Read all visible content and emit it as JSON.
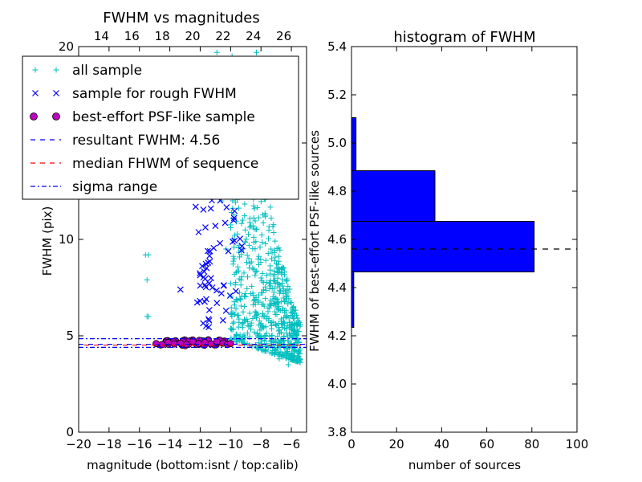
{
  "chart_data": [
    {
      "type": "scatter",
      "title": "FWHM vs magnitudes",
      "xlabel": "magnitude (bottom:isnt / top:calib)",
      "ylabel": "FWHM (pix)",
      "xlim": [
        -20,
        -5
      ],
      "ylim": [
        0,
        20
      ],
      "xticks": [
        "−20",
        "−18",
        "−16",
        "−14",
        "−12",
        "−10",
        "−8",
        "−6"
      ],
      "yticks": [
        "0",
        "5",
        "10",
        "15",
        "20"
      ],
      "top_xlim": [
        12.5,
        27.5
      ],
      "top_xticks": [
        "14",
        "16",
        "18",
        "20",
        "22",
        "24",
        "26"
      ],
      "grid": false,
      "legend_position": "upper-left",
      "legend": [
        {
          "label": "all sample",
          "marker": "plus",
          "color": "#00bfbf"
        },
        {
          "label": "sample for rough FWHM",
          "marker": "x",
          "color": "#0000ff"
        },
        {
          "label": "best-effort PSF-like sample",
          "marker": "circle",
          "color": "#bf00bf"
        },
        {
          "label": "resultant FWHM: 4.56",
          "marker": "dashed",
          "color": "#0000ff"
        },
        {
          "label": "median FHWM of sequence",
          "marker": "dashed",
          "color": "#ff0000"
        },
        {
          "label": "sigma range",
          "marker": "dashdot",
          "color": "#0000ff"
        }
      ],
      "series": [
        {
          "name": "all sample",
          "points": [
            [
              -15.6,
              9.2
            ],
            [
              -15.4,
              9.2
            ],
            [
              -15.5,
              7.9
            ],
            [
              -15.4,
              6.0
            ],
            [
              -15.5,
              6.0
            ],
            [
              -11.9,
              18.5
            ],
            [
              -11.6,
              17.0
            ],
            [
              -10.9,
              19.7
            ],
            [
              -10.6,
              12.0
            ],
            [
              -10.3,
              9.5
            ],
            [
              -9.9,
              16.0
            ],
            [
              -9.5,
              13.0
            ],
            [
              -9.2,
              11.0
            ],
            [
              -8.8,
              9.0
            ],
            [
              -8.3,
              19.7
            ],
            [
              -8.0,
              8.0
            ],
            [
              -7.6,
              6.0
            ],
            [
              -7.3,
              5.0
            ],
            [
              -6.8,
              3.8
            ],
            [
              -6.2,
              3.5
            ],
            [
              -5.8,
              4.2
            ]
          ],
          "cluster_note": "dense cluster of several hundred points between x ≈ −10 and −5, y ≈ 3.5 to 20"
        },
        {
          "name": "sample for rough FWHM",
          "points": [
            [
              -13.3,
              7.4
            ],
            [
              -12.2,
              13.2
            ],
            [
              -11.8,
              12.5
            ],
            [
              -11.3,
              11.6
            ],
            [
              -11.5,
              9.4
            ],
            [
              -11.0,
              10.7
            ],
            [
              -10.7,
              9.8
            ],
            [
              -11.2,
              7.5
            ],
            [
              -10.6,
              7.2
            ],
            [
              -10.3,
              6.3
            ],
            [
              -11.6,
              6.9
            ],
            [
              -12.0,
              7.6
            ],
            [
              -10.9,
              6.7
            ],
            [
              -10.5,
              5.8
            ],
            [
              -11.1,
              12.8
            ]
          ]
        },
        {
          "name": "best-effort PSF-like sample",
          "points": [
            [
              -14.9,
              4.6
            ],
            [
              -14.5,
              4.55
            ],
            [
              -14.1,
              4.65
            ],
            [
              -13.7,
              4.58
            ],
            [
              -13.3,
              4.62
            ],
            [
              -12.9,
              4.55
            ],
            [
              -12.5,
              4.7
            ],
            [
              -12.1,
              4.6
            ],
            [
              -11.7,
              4.65
            ],
            [
              -11.3,
              4.58
            ],
            [
              -10.9,
              4.7
            ],
            [
              -10.5,
              4.62
            ],
            [
              -10.2,
              4.55
            ],
            [
              -10.0,
              4.6
            ]
          ]
        }
      ],
      "hlines": [
        {
          "label": "resultant FWHM",
          "value": 4.56,
          "color": "#0000ff",
          "style": "dashed"
        },
        {
          "label": "median",
          "value": 4.56,
          "color": "#ff0000",
          "style": "dashed"
        },
        {
          "label": "sigma upper",
          "value": 4.85,
          "color": "#0000ff",
          "style": "dashdot"
        },
        {
          "label": "sigma lower",
          "value": 4.4,
          "color": "#0000ff",
          "style": "dashdot"
        }
      ]
    },
    {
      "type": "bar",
      "orientation": "horizontal",
      "title": "histogram of FWHM",
      "xlabel": "number of sources",
      "ylabel": "FWHM of best-effort PSF-like sources",
      "xlim": [
        0,
        100
      ],
      "ylim": [
        3.8,
        5.4
      ],
      "xticks": [
        "0",
        "20",
        "40",
        "60",
        "80",
        "100"
      ],
      "yticks": [
        "3.8",
        "4.0",
        "4.2",
        "4.4",
        "4.6",
        "4.8",
        "5.0",
        "5.2",
        "5.4"
      ],
      "grid": false,
      "bar_color": "#0000ff",
      "bins": [
        {
          "y0": 4.235,
          "y1": 4.465,
          "count": 1
        },
        {
          "y0": 4.465,
          "y1": 4.675,
          "count": 81
        },
        {
          "y0": 4.675,
          "y1": 4.885,
          "count": 37
        },
        {
          "y0": 4.885,
          "y1": 5.105,
          "count": 2
        }
      ],
      "reference_line": {
        "value": 4.56,
        "style": "dashed",
        "color": "#000000"
      }
    }
  ]
}
